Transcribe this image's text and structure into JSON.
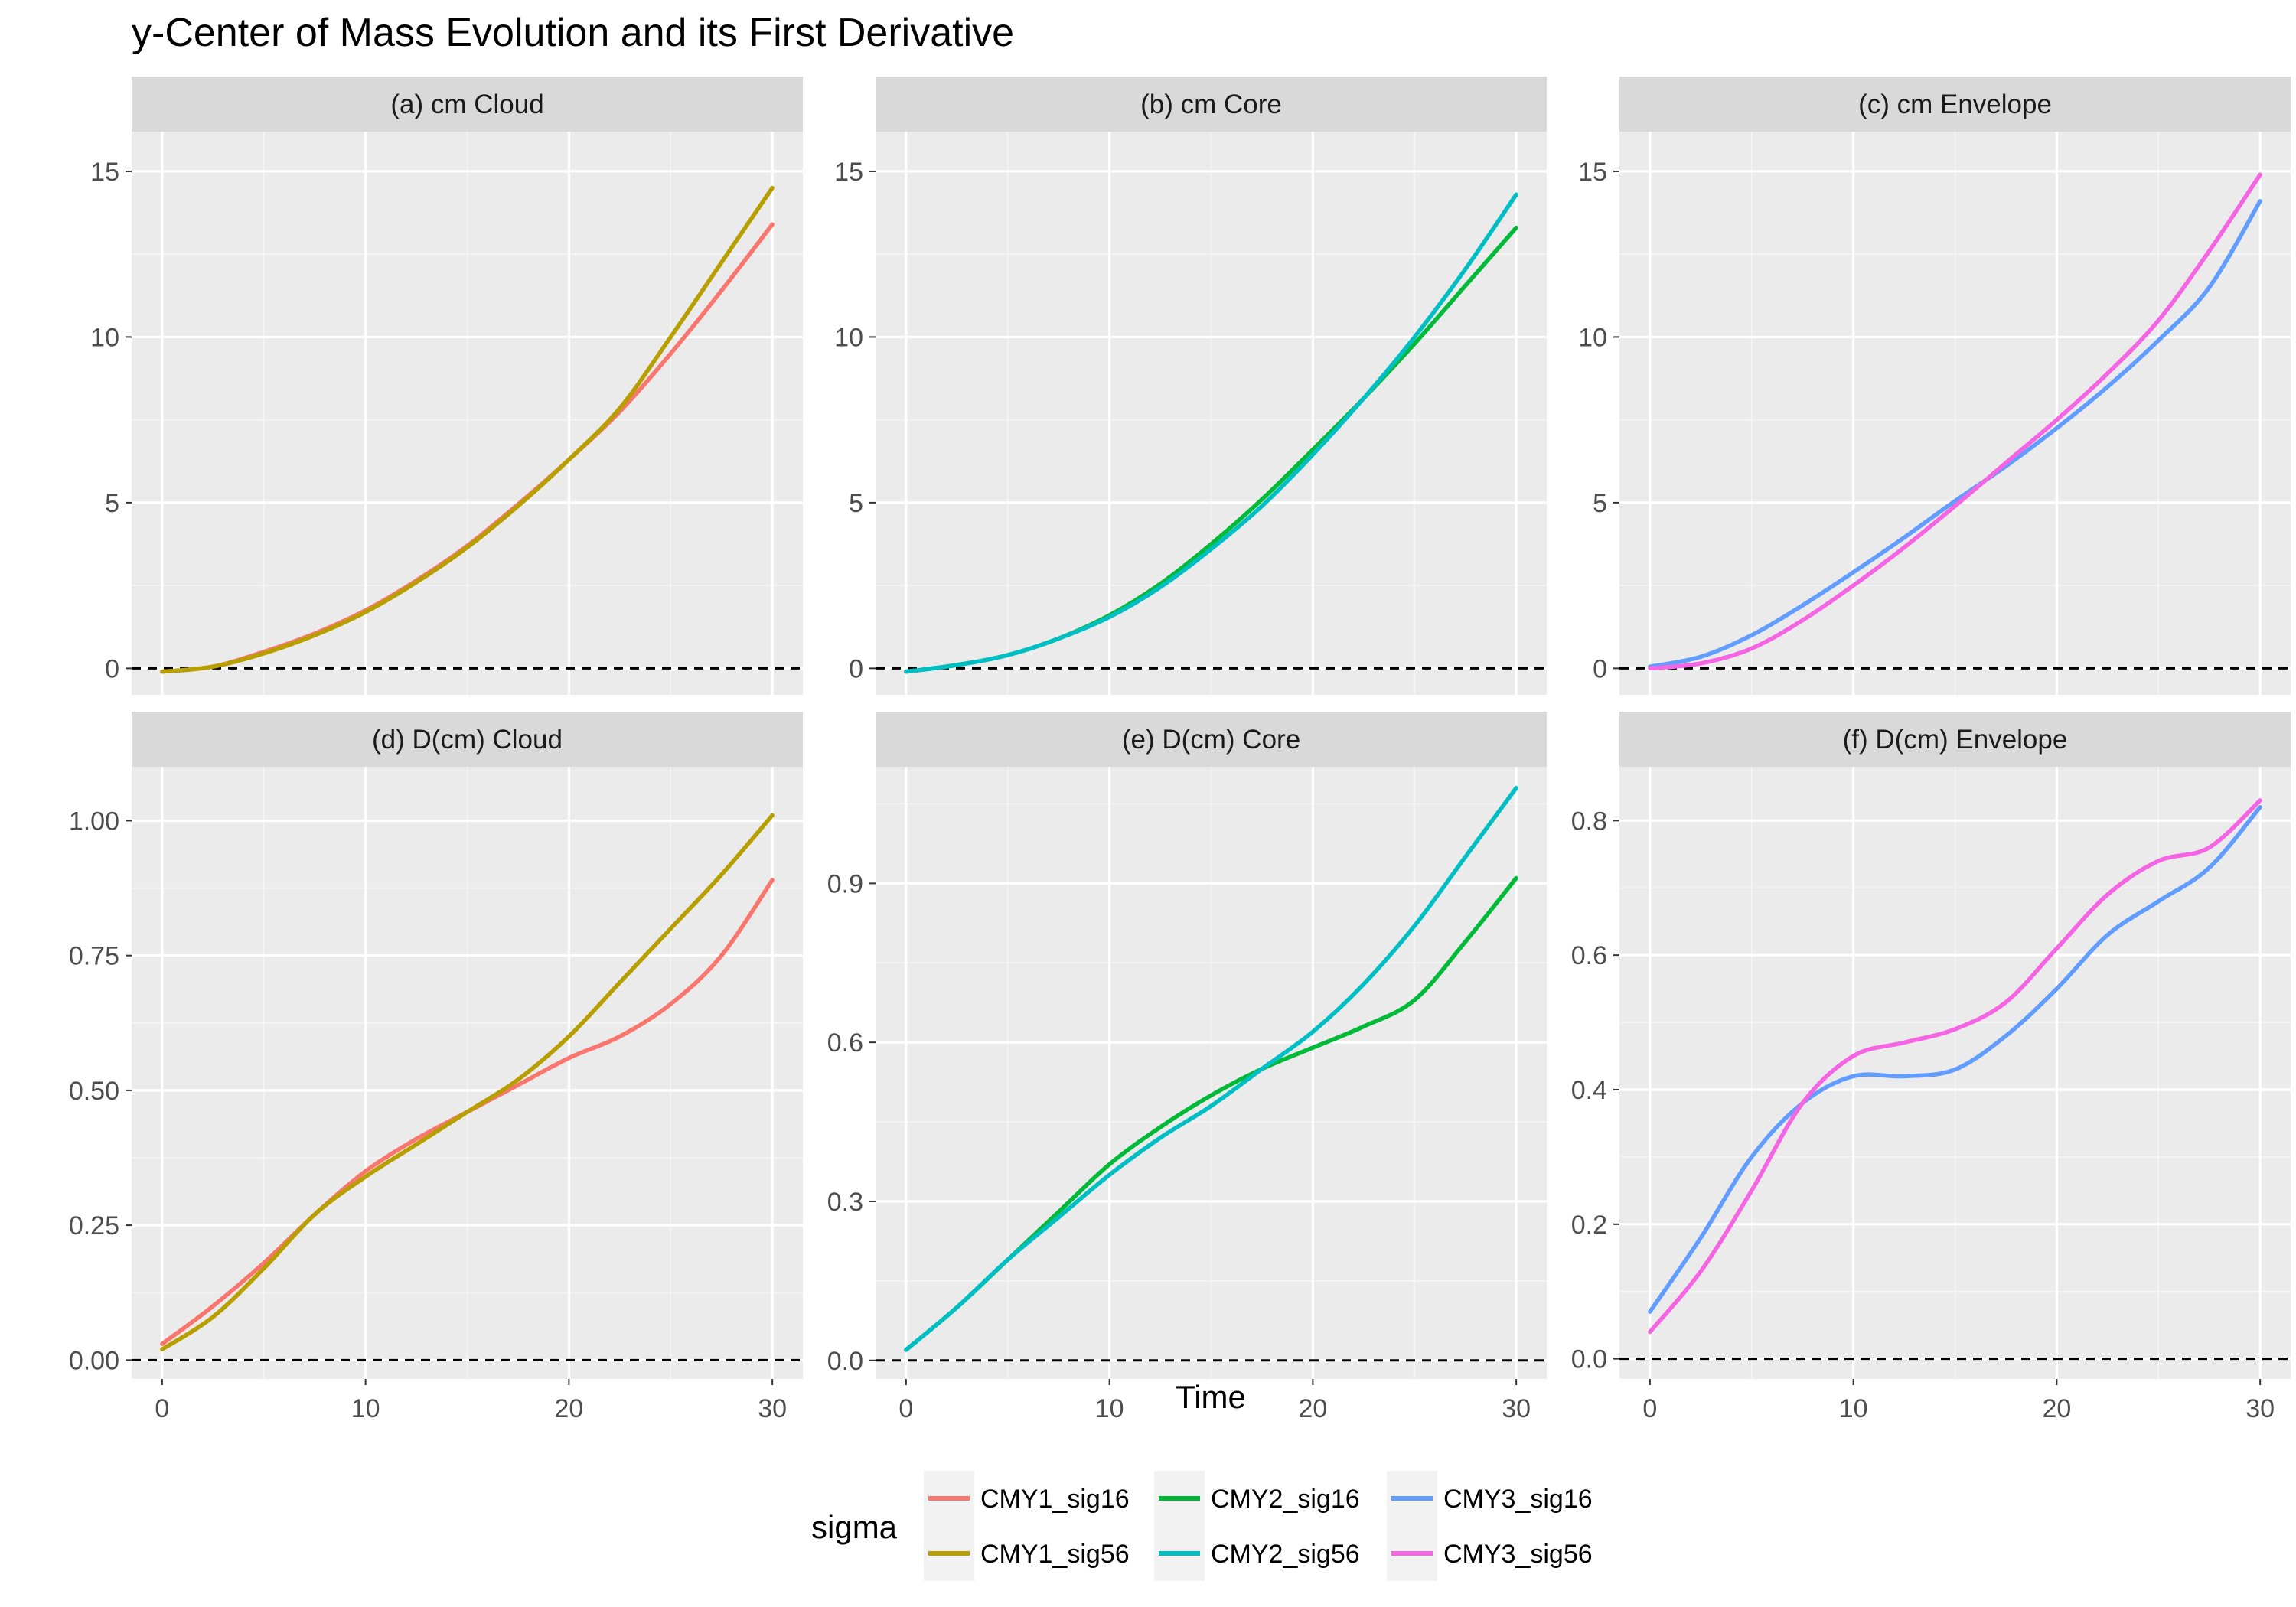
{
  "chart_data": {
    "type": "line",
    "title": "y-Center of Mass Evolution and its First Derivative",
    "xlabel": "Time",
    "ylabel": "",
    "grid": true,
    "x_ticks": [
      0,
      10,
      20,
      30
    ],
    "reference_line": {
      "y": 0,
      "style": "dashed"
    },
    "legend": {
      "title": "sigma",
      "position": "bottom",
      "entries": [
        {
          "name": "CMY1_sig16",
          "color": "#F8766D"
        },
        {
          "name": "CMY1_sig56",
          "color": "#B79F00"
        },
        {
          "name": "CMY2_sig16",
          "color": "#00BA38"
        },
        {
          "name": "CMY2_sig56",
          "color": "#00BFC4"
        },
        {
          "name": "CMY3_sig16",
          "color": "#619CFF"
        },
        {
          "name": "CMY3_sig56",
          "color": "#F564E3"
        }
      ]
    },
    "x": [
      0,
      2.5,
      5,
      7.5,
      10,
      12.5,
      15,
      17.5,
      20,
      22.5,
      25,
      27.5,
      30
    ],
    "panels": [
      {
        "strip": "(a) cm Cloud",
        "ylim": [
          -0.8,
          16.2
        ],
        "y_ticks": [
          0,
          5,
          10,
          15
        ],
        "y_tick_labels": [
          "0",
          "5",
          "10",
          "15"
        ],
        "series": [
          {
            "name": "CMY1_sig16",
            "color": "#F8766D",
            "values": [
              -0.1,
              0.05,
              0.5,
              1.05,
              1.75,
              2.65,
              3.7,
              4.95,
              6.3,
              7.75,
              9.5,
              11.4,
              13.4
            ]
          },
          {
            "name": "CMY1_sig56",
            "color": "#B79F00",
            "values": [
              -0.1,
              0.05,
              0.45,
              1.0,
              1.7,
              2.6,
              3.65,
              4.9,
              6.3,
              7.85,
              10.0,
              12.25,
              14.5
            ]
          }
        ]
      },
      {
        "strip": "(b) cm Core",
        "ylim": [
          -0.8,
          16.2
        ],
        "y_ticks": [
          0,
          5,
          10,
          15
        ],
        "y_tick_labels": [
          "0",
          "5",
          "10",
          "15"
        ],
        "series": [
          {
            "name": "CMY2_sig16",
            "color": "#00BA38",
            "values": [
              -0.1,
              0.1,
              0.4,
              0.9,
              1.6,
              2.55,
              3.75,
              5.1,
              6.6,
              8.15,
              9.8,
              11.55,
              13.3
            ]
          },
          {
            "name": "CMY2_sig56",
            "color": "#00BFC4",
            "values": [
              -0.1,
              0.1,
              0.4,
              0.9,
              1.55,
              2.45,
              3.6,
              4.9,
              6.45,
              8.15,
              10.0,
              12.05,
              14.3
            ]
          }
        ]
      },
      {
        "strip": "(c) cm Envelope",
        "ylim": [
          -0.8,
          16.2
        ],
        "y_ticks": [
          0,
          5,
          10,
          15
        ],
        "y_tick_labels": [
          "0",
          "5",
          "10",
          "15"
        ],
        "series": [
          {
            "name": "CMY3_sig16",
            "color": "#619CFF",
            "values": [
              0.05,
              0.35,
              1.0,
              1.9,
              2.9,
              3.95,
              5.05,
              6.1,
              7.25,
              8.5,
              9.9,
              11.5,
              14.1
            ]
          },
          {
            "name": "CMY3_sig56",
            "color": "#F564E3",
            "values": [
              0.0,
              0.15,
              0.6,
              1.45,
              2.5,
              3.65,
              4.9,
              6.2,
              7.5,
              8.9,
              10.5,
              12.6,
              14.9
            ]
          }
        ]
      },
      {
        "strip": "(d) D(cm) Cloud",
        "ylim": [
          -0.035,
          1.1
        ],
        "y_ticks": [
          0,
          0.25,
          0.5,
          0.75,
          1.0
        ],
        "y_tick_labels": [
          "0.00",
          "0.25",
          "0.50",
          "0.75",
          "1.00"
        ],
        "series": [
          {
            "name": "CMY1_sig16",
            "color": "#F8766D",
            "values": [
              0.03,
              0.1,
              0.18,
              0.27,
              0.35,
              0.41,
              0.46,
              0.51,
              0.56,
              0.6,
              0.66,
              0.75,
              0.89
            ]
          },
          {
            "name": "CMY1_sig56",
            "color": "#B79F00",
            "values": [
              0.02,
              0.08,
              0.17,
              0.27,
              0.34,
              0.4,
              0.46,
              0.52,
              0.6,
              0.7,
              0.8,
              0.9,
              1.01
            ]
          }
        ]
      },
      {
        "strip": "(e) D(cm) Core",
        "ylim": [
          -0.035,
          1.12
        ],
        "y_ticks": [
          0,
          0.3,
          0.6,
          0.9
        ],
        "y_tick_labels": [
          "0.0",
          "0.3",
          "0.6",
          "0.9"
        ],
        "series": [
          {
            "name": "CMY2_sig16",
            "color": "#00BA38",
            "values": [
              0.02,
              0.1,
              0.19,
              0.28,
              0.37,
              0.44,
              0.5,
              0.55,
              0.59,
              0.63,
              0.68,
              0.79,
              0.91
            ]
          },
          {
            "name": "CMY2_sig56",
            "color": "#00BFC4",
            "values": [
              0.02,
              0.1,
              0.19,
              0.27,
              0.35,
              0.42,
              0.48,
              0.55,
              0.62,
              0.71,
              0.82,
              0.95,
              1.08
            ]
          }
        ]
      },
      {
        "strip": "(f) D(cm) Envelope",
        "ylim": [
          -0.03,
          0.88
        ],
        "y_ticks": [
          0,
          0.2,
          0.4,
          0.6,
          0.8
        ],
        "y_tick_labels": [
          "0.0",
          "0.2",
          "0.4",
          "0.6",
          "0.8"
        ],
        "series": [
          {
            "name": "CMY3_sig16",
            "color": "#619CFF",
            "values": [
              0.07,
              0.18,
              0.3,
              0.38,
              0.42,
              0.42,
              0.43,
              0.48,
              0.55,
              0.63,
              0.68,
              0.73,
              0.82
            ]
          },
          {
            "name": "CMY3_sig56",
            "color": "#F564E3",
            "values": [
              0.04,
              0.13,
              0.25,
              0.38,
              0.45,
              0.47,
              0.49,
              0.53,
              0.61,
              0.69,
              0.74,
              0.76,
              0.83
            ]
          }
        ]
      }
    ]
  }
}
